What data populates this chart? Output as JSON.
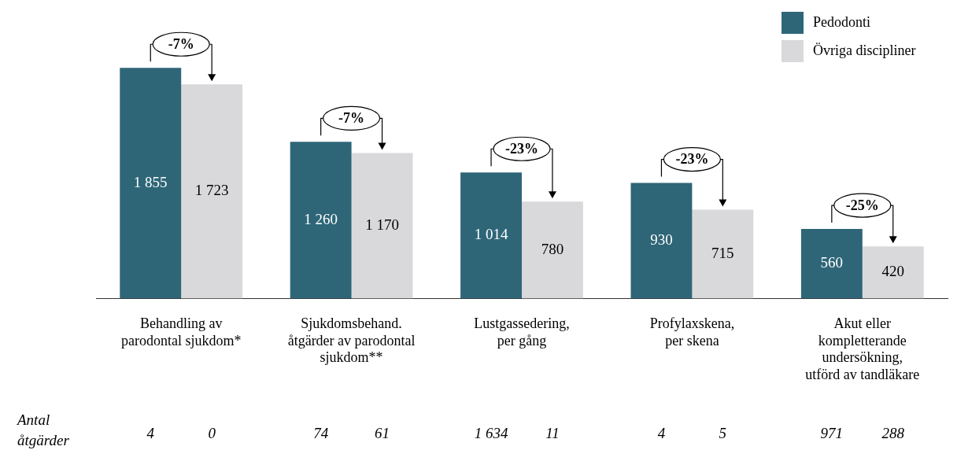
{
  "chart_data": {
    "type": "bar",
    "categories": [
      "Behandling av\nparodontal sjukdom*",
      "Sjukdomsbehand.\nåtgärder av parodontal\nsjukdom**",
      "Lustgassedering,\nper gång",
      "Profylaxskena,\nper skena",
      "Akut eller\nkompletterande\nundersökning,\nutförd av tandläkare"
    ],
    "series": [
      {
        "name": "Pedodonti",
        "color": "#2e6678",
        "values": [
          1855,
          1260,
          1014,
          930,
          560
        ],
        "value_labels": [
          "1 855",
          "1 260",
          "1 014",
          "930",
          "560"
        ]
      },
      {
        "name": "Övriga discipliner",
        "color": "#d9d9db",
        "values": [
          1723,
          1170,
          780,
          715,
          420
        ],
        "value_labels": [
          "1 723",
          "1 170",
          "780",
          "715",
          "420"
        ]
      }
    ],
    "annotations": [
      {
        "text": "-7%",
        "x": "Behandling av\nparodontal sjukdom*",
        "y": 1855
      },
      {
        "text": "-7%",
        "x": "Sjukdomsbehand.\nåtgärder av parodontal\nsjukdom**",
        "y": 1260
      },
      {
        "text": "-23%",
        "x": "Lustgassedering,\nper gång",
        "y": 1014
      },
      {
        "text": "-23%",
        "x": "Profylaxskena,\nper skena",
        "y": 930
      },
      {
        "text": "-25%",
        "x": "Akut eller\nkompletterande\nundersökning,\nutförd av tandläkare",
        "y": 560
      },
      "Antal åtgärder",
      "4",
      "0",
      "74",
      "61",
      "1 634",
      "11",
      "4",
      "5",
      "971",
      "288"
    ],
    "legend": "top right",
    "grid": false
  }
}
